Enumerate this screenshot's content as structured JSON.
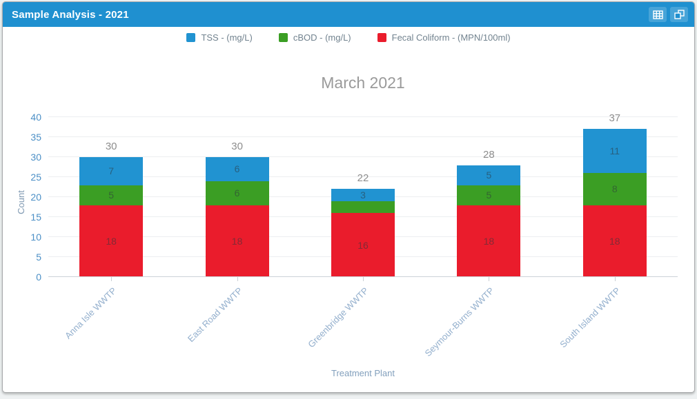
{
  "window": {
    "title": "Sample Analysis - 2021",
    "header_color": "#1f90d0",
    "icons": [
      {
        "name": "table-grid-icon"
      },
      {
        "name": "popout-windows-icon"
      }
    ]
  },
  "legend": {
    "position": "top",
    "items": [
      {
        "label": "TSS - (mg/L)",
        "color": "#2193d1"
      },
      {
        "label": "cBOD - (mg/L)",
        "color": "#3b9e24"
      },
      {
        "label": "Fecal Coliform - (MPN/100ml)",
        "color": "#ea1c2c"
      }
    ]
  },
  "chart_data": {
    "type": "bar",
    "stacked": true,
    "title": "March 2021",
    "xlabel": "Treatment Plant",
    "ylabel": "Count",
    "ylim": [
      0,
      40
    ],
    "yticks": [
      0,
      5,
      10,
      15,
      20,
      25,
      30,
      35,
      40
    ],
    "grid": true,
    "legend_position": "top",
    "categories": [
      "Anna Isle WWTP",
      "East Road WWTP",
      "Greenbridge WWTP",
      "Seymour-Burns WWTP",
      "South Island WWTP"
    ],
    "series": [
      {
        "name": "Fecal Coliform - (MPN/100ml)",
        "color": "#ea1c2c",
        "values": [
          18,
          18,
          16,
          18,
          18
        ],
        "labels": [
          "18",
          "18",
          "16",
          "18",
          "18"
        ]
      },
      {
        "name": "cBOD - (mg/L)",
        "color": "#3b9e24",
        "values": [
          5,
          6,
          3,
          5,
          8
        ],
        "labels": [
          "5",
          "6",
          "",
          "5",
          "8"
        ]
      },
      {
        "name": "TSS - (mg/L)",
        "color": "#2193d1",
        "values": [
          7,
          6,
          3,
          5,
          11
        ],
        "labels": [
          "7",
          "6",
          "3",
          "5",
          "11"
        ]
      }
    ],
    "totals": [
      30,
      30,
      22,
      28,
      37
    ]
  }
}
